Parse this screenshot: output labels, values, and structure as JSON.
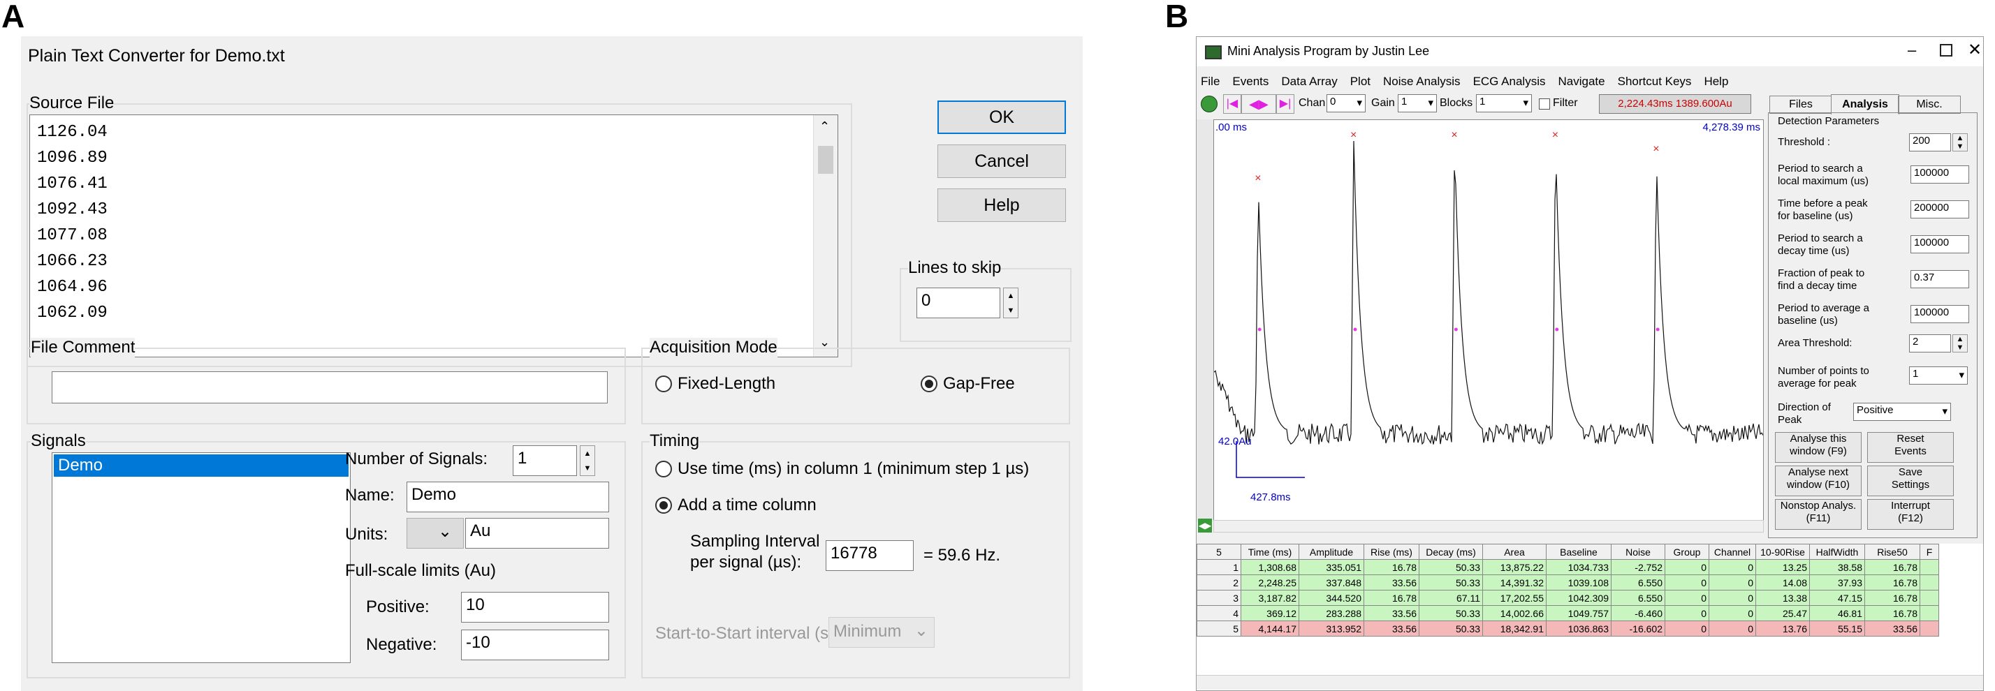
{
  "panel_a_letter": "A",
  "panel_b_letter": "B",
  "converter": {
    "title": "Plain Text Converter for Demo.txt",
    "source_file_label": "Source File",
    "source_lines": [
      "1126.04",
      "1096.89",
      "1076.41",
      "1092.43",
      "1077.08",
      "1066.23",
      "1064.96",
      "1062.09"
    ],
    "ok_label": "OK",
    "cancel_label": "Cancel",
    "help_label": "Help",
    "lines_to_skip_label": "Lines to skip",
    "lines_to_skip_value": "0",
    "file_comment_label": "File Comment",
    "file_comment_value": "",
    "acquisition_label": "Acquisition Mode",
    "fixed_length_label": "Fixed-Length",
    "gap_free_label": "Gap-Free",
    "signals_label": "Signals",
    "signal_items": [
      "Demo"
    ],
    "num_signals_label": "Number of Signals:",
    "num_signals_value": "1",
    "name_label": "Name:",
    "name_value": "Demo",
    "units_label": "Units:",
    "units_value": "Au",
    "fullscale_label": "Full-scale limits (Au)",
    "positive_label": "Positive:",
    "positive_value": "10",
    "negative_label": "Negative:",
    "negative_value": "-10",
    "timing_label": "Timing",
    "use_time_label": "Use time (ms) in column 1 (minimum step 1 µs)",
    "add_time_label": "Add a time column",
    "sampling_label_1": "Sampling Interval",
    "sampling_label_2": "per signal (µs):",
    "sampling_value": "16778",
    "hz_label": "= 59.6 Hz.",
    "start_interval_label": "Start-to-Start interval (s):",
    "start_interval_value": "Minimum"
  },
  "mini": {
    "title": "Mini Analysis Program by Justin Lee",
    "menu": [
      "File",
      "Events",
      "Data Array",
      "Plot",
      "Noise Analysis",
      "ECG Analysis",
      "Navigate",
      "Shortcut Keys",
      "Help"
    ],
    "chan_label": "Chan",
    "chan_value": "0",
    "gain_label": "Gain",
    "gain_value": "1",
    "blocks_label": "Blocks",
    "blocks_value": "1",
    "filter_label": "Filter",
    "readout": "2,224.43ms  1389.600Au",
    "start_ms": ".00 ms",
    "end_ms": "4,278.39 ms",
    "scale_amp": "42.0Au",
    "scale_time": "427.8ms",
    "tabs": [
      "Files",
      "Analysis",
      "Misc."
    ],
    "detection_label": "Detection Parameters",
    "threshold_label": "Threshold :",
    "threshold_value": "200",
    "params": [
      {
        "label1": "Period to search a",
        "label2": "local maximum (us)",
        "value": "100000"
      },
      {
        "label1": "Time before a peak",
        "label2": "for baseline (us)",
        "value": "200000"
      },
      {
        "label1": "Period to search a",
        "label2": "decay time (us)",
        "value": "100000"
      },
      {
        "label1": "Fraction of peak to",
        "label2": "find a decay time",
        "value": "0.37"
      },
      {
        "label1": "Period to average a",
        "label2": "baseline (us)",
        "value": "100000"
      }
    ],
    "area_label": "Area Threshold:",
    "area_value": "2",
    "npoints_label1": "Number of points to",
    "npoints_label2": "average for peak",
    "npoints_value": "1",
    "direction_label1": "Direction of",
    "direction_label2": "Peak",
    "direction_value": "Positive",
    "btn_analyse_this": [
      "Analyse this",
      "window (F9)"
    ],
    "btn_reset": [
      "Reset",
      "Events"
    ],
    "btn_analyse_next": [
      "Analyse next",
      "window (F10)"
    ],
    "btn_save": [
      "Save",
      "Settings"
    ],
    "btn_nonstop": [
      "Nonstop Analys.",
      "(F11)"
    ],
    "btn_interrupt": [
      "Interrupt",
      "(F12)"
    ],
    "table_headers": [
      "5",
      "Time (ms)",
      "Amplitude",
      "Rise (ms)",
      "Decay (ms)",
      "Area",
      "Baseline",
      "Noise",
      "Group",
      "Channel",
      "10-90Rise",
      "HalfWidth",
      "Rise50",
      "F"
    ],
    "table_rows": [
      [
        "1",
        "1,308.68",
        "335.051",
        "16.78",
        "50.33",
        "13,875.22",
        "1034.733",
        "-2.752",
        "0",
        "0",
        "13.25",
        "38.58",
        "16.78"
      ],
      [
        "2",
        "2,248.25",
        "337.848",
        "33.56",
        "50.33",
        "14,391.32",
        "1039.108",
        "6.550",
        "0",
        "0",
        "14.08",
        "37.93",
        "16.78"
      ],
      [
        "3",
        "3,187.82",
        "344.520",
        "16.78",
        "67.11",
        "17,202.55",
        "1042.309",
        "6.550",
        "0",
        "0",
        "13.38",
        "47.15",
        "16.78"
      ],
      [
        "4",
        "369.12",
        "283.288",
        "33.56",
        "50.33",
        "14,002.66",
        "1049.757",
        "-6.460",
        "0",
        "0",
        "25.47",
        "46.81",
        "16.78"
      ],
      [
        "5",
        "4,144.17",
        "313.952",
        "33.56",
        "50.33",
        "18,342.91",
        "1036.863",
        "-16.602",
        "0",
        "0",
        "13.76",
        "55.15",
        "33.56"
      ]
    ]
  },
  "colors": {
    "row_green": "#c8f5c0",
    "row_red": "#f5b8b8",
    "readout": "#cc0000",
    "peak_marker": "#e02020",
    "select_blue": "#0078d7"
  }
}
